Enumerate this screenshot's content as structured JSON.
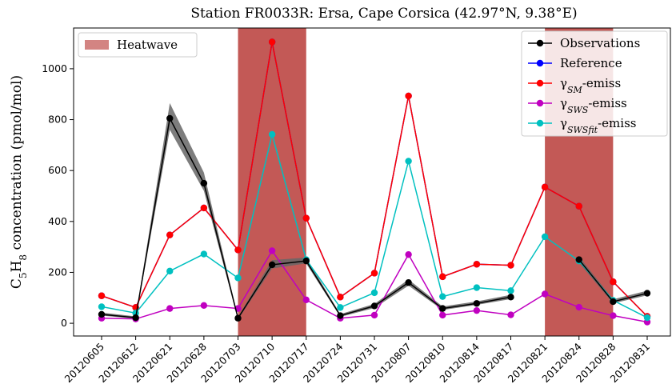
{
  "chart_data": {
    "type": "line",
    "title": "Station FR0033R: Ersa, Cape Corsica (42.97°N, 9.38°E)",
    "y_label": "C5H8 concentration (pmol/mol)",
    "categories": [
      "20120605",
      "20120612",
      "20120621",
      "20120628",
      "20120703",
      "20120710",
      "20120717",
      "20120724",
      "20120731",
      "20120807",
      "20120810",
      "20120814",
      "20120817",
      "20120821",
      "20120824",
      "20120828",
      "20120831"
    ],
    "ylim": [
      -50,
      1160
    ],
    "yticks": [
      0,
      200,
      400,
      600,
      800,
      1000
    ],
    "legend": "upper right",
    "heatwave": {
      "name": "Heatwave",
      "color": "#c0504d",
      "legend": "upper left",
      "spans": [
        {
          "start": "20120703",
          "end": "20120717"
        },
        {
          "start": "20120821",
          "end": "20120828"
        }
      ]
    },
    "obs_range": {
      "color": "#666666",
      "lower": [
        30,
        18,
        760,
        520,
        15,
        215,
        235,
        25,
        60,
        148,
        52,
        72,
        95,
        null,
        238,
        78,
        110
      ],
      "upper": [
        42,
        27,
        865,
        592,
        25,
        248,
        258,
        36,
        76,
        172,
        66,
        86,
        112,
        null,
        262,
        94,
        128
      ]
    },
    "series": [
      {
        "name": "Observations",
        "color": "#000000",
        "values": [
          35,
          22,
          805,
          550,
          20,
          230,
          245,
          30,
          68,
          160,
          58,
          78,
          103,
          null,
          250,
          85,
          118
        ]
      },
      {
        "name": "Reference",
        "color": "#0000ff",
        "values": [
          108,
          62,
          347,
          453,
          288,
          1105,
          413,
          103,
          197,
          893,
          183,
          232,
          228,
          535,
          460,
          163,
          27
        ]
      },
      {
        "name": "γSM-emiss",
        "color": "#ff0000",
        "values": [
          108,
          62,
          347,
          453,
          288,
          1105,
          413,
          103,
          197,
          893,
          183,
          232,
          228,
          535,
          460,
          163,
          27
        ]
      },
      {
        "name": "γSWS-emiss",
        "color": "#c000c0",
        "values": [
          20,
          17,
          58,
          70,
          58,
          285,
          92,
          20,
          32,
          270,
          32,
          50,
          33,
          115,
          63,
          30,
          5
        ]
      },
      {
        "name": "γSWSfit-emiss",
        "color": "#00c0c0",
        "values": [
          65,
          40,
          205,
          272,
          178,
          742,
          250,
          62,
          120,
          637,
          105,
          140,
          128,
          340,
          245,
          90,
          22
        ]
      }
    ]
  }
}
